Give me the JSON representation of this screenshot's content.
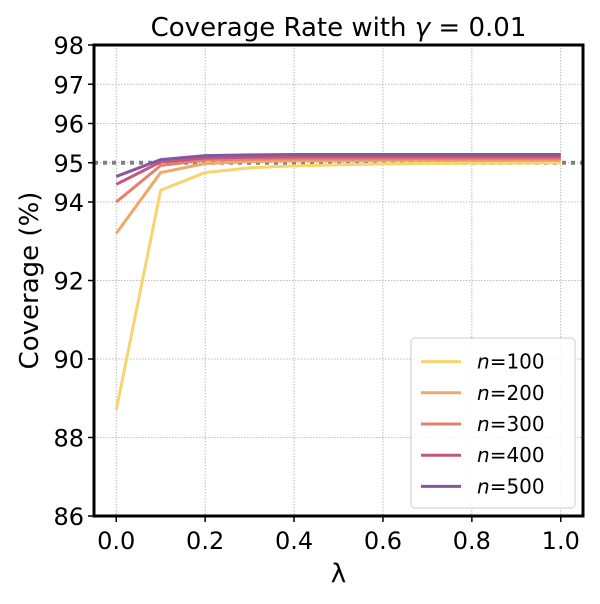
{
  "chart_data": {
    "type": "line",
    "title_prefix": "Coverage Rate with ",
    "title_gamma_symbol": "γ",
    "title_equals": " = ",
    "title_gamma_value": "0.01",
    "xlabel": "λ",
    "ylabel": "Coverage (%)",
    "xlim": [
      -0.05,
      1.05
    ],
    "ylim": [
      86,
      98
    ],
    "x_ticks": [
      0.0,
      0.2,
      0.4,
      0.6,
      0.8,
      1.0
    ],
    "x_tick_labels": [
      "0.0",
      "0.2",
      "0.4",
      "0.6",
      "0.8",
      "1.0"
    ],
    "y_ticks": [
      86,
      88,
      90,
      92,
      94,
      95,
      96,
      97,
      98
    ],
    "y_tick_labels": [
      "86",
      "88",
      "90",
      "92",
      "94",
      "95",
      "96",
      "97",
      "98"
    ],
    "grid": true,
    "reference_line": {
      "y": 95,
      "style": "dotted",
      "color": "#808080"
    },
    "legend_position": "lower-right",
    "legend_var": "n",
    "x": [
      0.0,
      0.1,
      0.2,
      0.3,
      0.4,
      0.5,
      0.6,
      0.7,
      0.8,
      0.9,
      1.0
    ],
    "series": [
      {
        "name": "100",
        "color": "#f7d46e",
        "values": [
          88.7,
          94.3,
          94.75,
          94.87,
          94.92,
          94.95,
          94.97,
          94.98,
          94.99,
          94.99,
          95.0
        ]
      },
      {
        "name": "200",
        "color": "#f0a868",
        "values": [
          93.2,
          94.75,
          94.98,
          95.03,
          95.05,
          95.05,
          95.06,
          95.06,
          95.06,
          95.06,
          95.06
        ]
      },
      {
        "name": "300",
        "color": "#e6806e",
        "values": [
          94.0,
          94.93,
          95.07,
          95.09,
          95.1,
          95.1,
          95.1,
          95.1,
          95.1,
          95.1,
          95.1
        ]
      },
      {
        "name": "400",
        "color": "#c2577e",
        "values": [
          94.45,
          95.02,
          95.12,
          95.14,
          95.15,
          95.15,
          95.15,
          95.15,
          95.15,
          95.15,
          95.15
        ]
      },
      {
        "name": "500",
        "color": "#8457a0",
        "values": [
          94.65,
          95.08,
          95.18,
          95.2,
          95.21,
          95.21,
          95.21,
          95.21,
          95.21,
          95.21,
          95.21
        ]
      }
    ]
  }
}
